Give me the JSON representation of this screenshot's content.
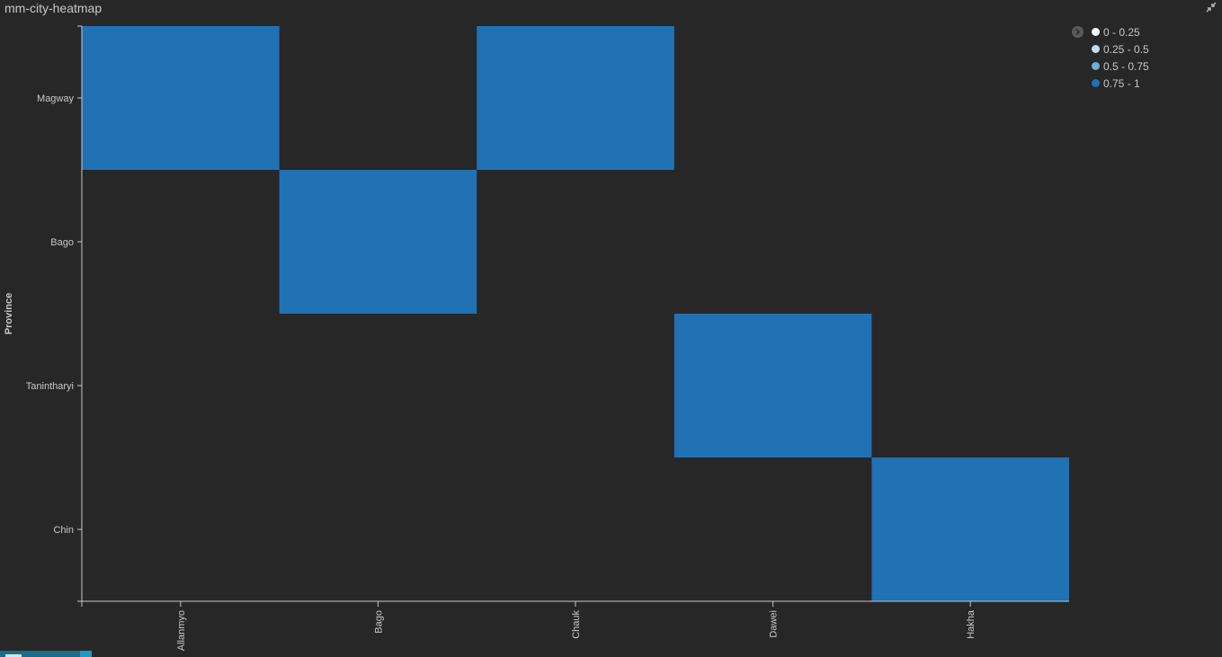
{
  "panel": {
    "title": "mm-city-heatmap"
  },
  "legend": {
    "items": [
      {
        "label": "0 - 0.25",
        "color": "#f7fbff"
      },
      {
        "label": "0.25 - 0.5",
        "color": "#c6dbef"
      },
      {
        "label": "0.5 - 0.75",
        "color": "#6baed6"
      },
      {
        "label": "0.75 - 1",
        "color": "#2171b5"
      }
    ]
  },
  "colors": {
    "background": "#272727",
    "axis": "#c8c8c8",
    "text": "#c8c8c8"
  },
  "chart_data": {
    "type": "heatmap",
    "title": "",
    "xlabel": "",
    "ylabel": "Province",
    "x_categories": [
      "Allanmyo",
      "Bago",
      "Chauk",
      "Dawei",
      "Hakha"
    ],
    "y_categories": [
      "Magway",
      "Bago",
      "Tanintharyi",
      "Chin"
    ],
    "cells": [
      {
        "x": "Allanmyo",
        "y": "Magway",
        "value": 1
      },
      {
        "x": "Chauk",
        "y": "Magway",
        "value": 1
      },
      {
        "x": "Bago",
        "y": "Bago",
        "value": 1
      },
      {
        "x": "Dawei",
        "y": "Tanintharyi",
        "value": 1
      },
      {
        "x": "Hakha",
        "y": "Chin",
        "value": 1
      }
    ],
    "legend_position": "top-right",
    "grid": false
  }
}
